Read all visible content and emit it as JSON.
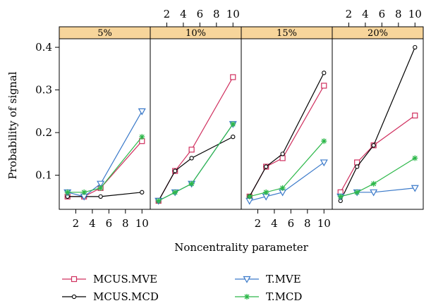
{
  "chart_data": {
    "type": "line",
    "xlabel": "Noncentrality parameter",
    "ylabel": "Probability of signal",
    "ylim": [
      0.02,
      0.42
    ],
    "xlim": [
      0,
      11
    ],
    "x_ticks": [
      "2",
      "4",
      "6",
      "8",
      "10"
    ],
    "y_ticks": [
      "0.1",
      "0.2",
      "0.3",
      "0.4"
    ],
    "x_tick_values": [
      2,
      4,
      6,
      8,
      10
    ],
    "y_tick_values": [
      0.1,
      0.2,
      0.3,
      0.4
    ],
    "x": [
      1,
      3,
      5,
      10
    ],
    "colors": {
      "strip_fill": "#F7D59B",
      "MCUS.MVE": "#D0305F",
      "MCUS.MCD": "#000000",
      "T.MVE": "#3A79C9",
      "T.MCD": "#2DB84A"
    },
    "markers": {
      "MCUS.MVE": "square",
      "MCUS.MCD": "circle",
      "T.MVE": "triangle-down",
      "T.MCD": "star"
    },
    "legend": {
      "placement": "bottom",
      "items": [
        "MCUS.MVE",
        "T.MVE",
        "MCUS.MCD",
        "T.MCD"
      ]
    },
    "panels": [
      {
        "label": "5%",
        "series": [
          {
            "name": "MCUS.MVE",
            "values": [
              0.05,
              0.05,
              0.07,
              0.18
            ]
          },
          {
            "name": "MCUS.MCD",
            "values": [
              0.05,
              0.05,
              0.05,
              0.06
            ]
          },
          {
            "name": "T.MVE",
            "values": [
              0.06,
              0.05,
              0.08,
              0.25
            ]
          },
          {
            "name": "T.MCD",
            "values": [
              0.06,
              0.06,
              0.07,
              0.19
            ]
          }
        ]
      },
      {
        "label": "10%",
        "series": [
          {
            "name": "MCUS.MVE",
            "values": [
              0.04,
              0.11,
              0.16,
              0.33
            ]
          },
          {
            "name": "MCUS.MCD",
            "values": [
              0.04,
              0.11,
              0.14,
              0.19
            ]
          },
          {
            "name": "T.MVE",
            "values": [
              0.04,
              0.06,
              0.08,
              0.22
            ]
          },
          {
            "name": "T.MCD",
            "values": [
              0.04,
              0.06,
              0.08,
              0.22
            ]
          }
        ]
      },
      {
        "label": "15%",
        "series": [
          {
            "name": "MCUS.MVE",
            "values": [
              0.05,
              0.12,
              0.14,
              0.31
            ]
          },
          {
            "name": "MCUS.MCD",
            "values": [
              0.05,
              0.12,
              0.15,
              0.34
            ]
          },
          {
            "name": "T.MVE",
            "values": [
              0.04,
              0.05,
              0.06,
              0.13
            ]
          },
          {
            "name": "T.MCD",
            "values": [
              0.05,
              0.06,
              0.07,
              0.18
            ]
          }
        ]
      },
      {
        "label": "20%",
        "series": [
          {
            "name": "MCUS.MVE",
            "values": [
              0.06,
              0.13,
              0.17,
              0.24
            ]
          },
          {
            "name": "MCUS.MCD",
            "values": [
              0.04,
              0.12,
              0.17,
              0.4
            ]
          },
          {
            "name": "T.MVE",
            "values": [
              0.05,
              0.06,
              0.06,
              0.07
            ]
          },
          {
            "name": "T.MCD",
            "values": [
              0.05,
              0.06,
              0.08,
              0.14
            ]
          }
        ]
      }
    ]
  }
}
